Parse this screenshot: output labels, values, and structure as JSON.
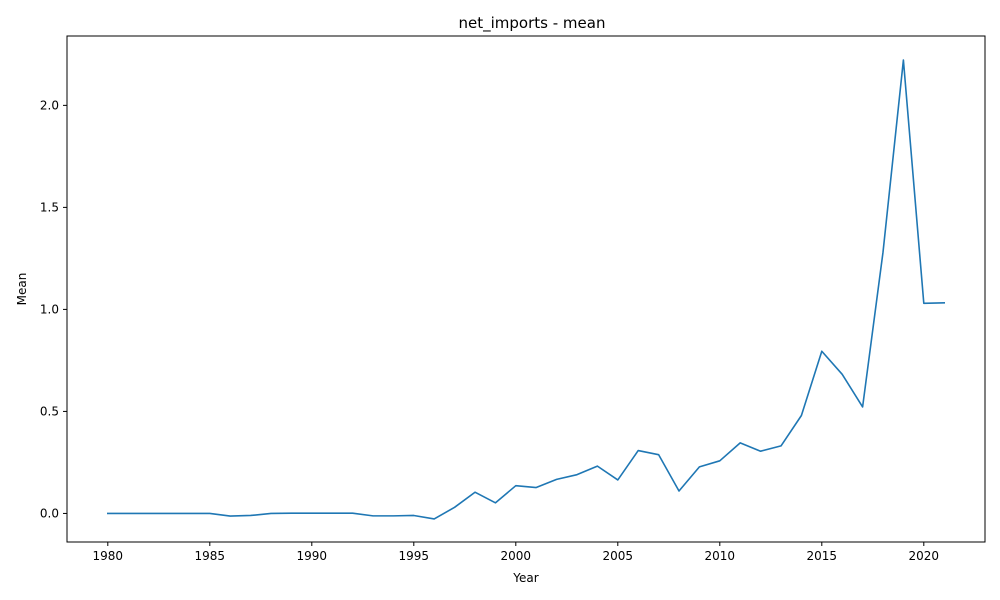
{
  "chart_data": {
    "type": "line",
    "title": "net_imports - mean",
    "xlabel": "Year",
    "ylabel": "Mean",
    "xlim": [
      1978,
      2023
    ],
    "ylim": [
      -0.14,
      2.34
    ],
    "xticks": [
      1980,
      1985,
      1990,
      1995,
      2000,
      2005,
      2010,
      2015,
      2020
    ],
    "yticks": [
      0.0,
      0.5,
      1.0,
      1.5,
      2.0
    ],
    "ytick_labels": [
      "0.0",
      "0.5",
      "1.0",
      "1.5",
      "2.0"
    ],
    "grid": false,
    "color": "#1f77b4",
    "x": [
      1980,
      1981,
      1982,
      1983,
      1984,
      1985,
      1986,
      1987,
      1988,
      1989,
      1990,
      1991,
      1992,
      1993,
      1994,
      1995,
      1996,
      1997,
      1998,
      1999,
      2000,
      2001,
      2002,
      2003,
      2004,
      2005,
      2006,
      2007,
      2008,
      2009,
      2010,
      2011,
      2012,
      2013,
      2014,
      2015,
      2016,
      2017,
      2018,
      2019,
      2020,
      2021
    ],
    "values": [
      0.0,
      0.0,
      0.0,
      0.0,
      0.0,
      0.0,
      -0.013,
      -0.01,
      0.0,
      0.001,
      0.001,
      0.001,
      0.001,
      -0.012,
      -0.012,
      -0.01,
      -0.027,
      0.03,
      0.104,
      0.052,
      0.136,
      0.127,
      0.167,
      0.19,
      0.232,
      0.164,
      0.308,
      0.288,
      0.11,
      0.228,
      0.258,
      0.346,
      0.305,
      0.331,
      0.48,
      0.795,
      0.682,
      0.522,
      1.28,
      2.222,
      1.03,
      1.032
    ]
  }
}
